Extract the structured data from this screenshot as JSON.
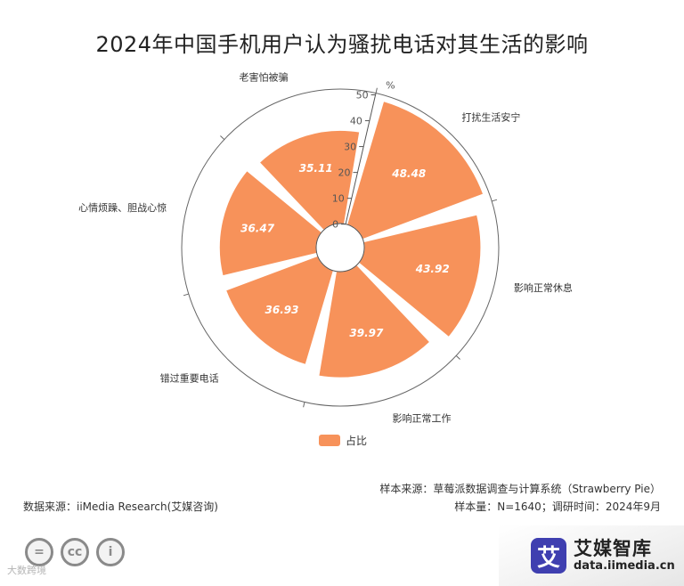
{
  "title": "2024年中国手机用户认为骚扰电话对其生活的影响",
  "chart_data": {
    "type": "polar-bar",
    "title": "2024年中国手机用户认为骚扰电话对其生活的影响",
    "categories": [
      "打扰生活安宁",
      "影响正常休息",
      "影响正常工作",
      "错过重要电话",
      "心情烦躁、胆战心惊",
      "老害怕被骗"
    ],
    "series": [
      {
        "name": "占比",
        "values": [
          48.48,
          43.92,
          39.97,
          36.93,
          36.47,
          35.11
        ]
      }
    ],
    "radial_axis": {
      "unit": "%",
      "min": 0,
      "max": 50,
      "ticks": [
        0,
        10,
        20,
        30,
        40,
        50
      ]
    },
    "legend_position": "bottom",
    "colors": {
      "bar": "#f7925a",
      "axis": "#555555"
    }
  },
  "legend": {
    "label": "占比"
  },
  "footer": {
    "sample_source": "样本来源：草莓派数据调查与计算系统（Strawberry Pie）",
    "sample_size": "样本量：N=1640；调研时间：2024年9月",
    "data_source": "数据来源：iiMedia Research(艾媒咨询)"
  },
  "brand": {
    "logo_char": "艾",
    "name": "艾媒智库",
    "url": "data.iimedia.cn"
  },
  "watermark": "大数跨境",
  "license_icons": {
    "nd": "=",
    "cc": "cc",
    "by": "i"
  }
}
